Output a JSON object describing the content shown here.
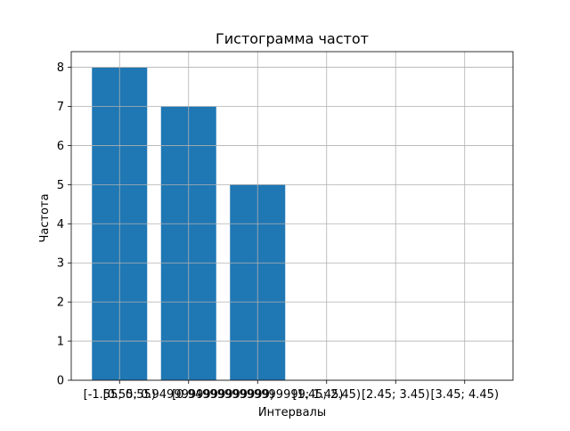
{
  "chart_data": {
    "type": "bar",
    "title": "Гистограмма частот",
    "xlabel": "Интервалы",
    "ylabel": "Частота",
    "categories": [
      "[-1.55; 0.55)",
      "[0.55; 0.9499999999999999)",
      "[0.9499999999999999; 1.45)",
      "[1.45; 2.45)",
      "[2.45; 3.45)",
      "[3.45; 4.45)"
    ],
    "values": [
      8,
      7,
      5,
      0,
      0,
      0
    ],
    "ylim": [
      0,
      8.4
    ],
    "yticks": [
      "0",
      "1",
      "2",
      "3",
      "4",
      "5",
      "6",
      "7",
      "8"
    ],
    "grid": true,
    "bar_color": "#1f77b4",
    "grid_color": "#b0b0b0"
  }
}
